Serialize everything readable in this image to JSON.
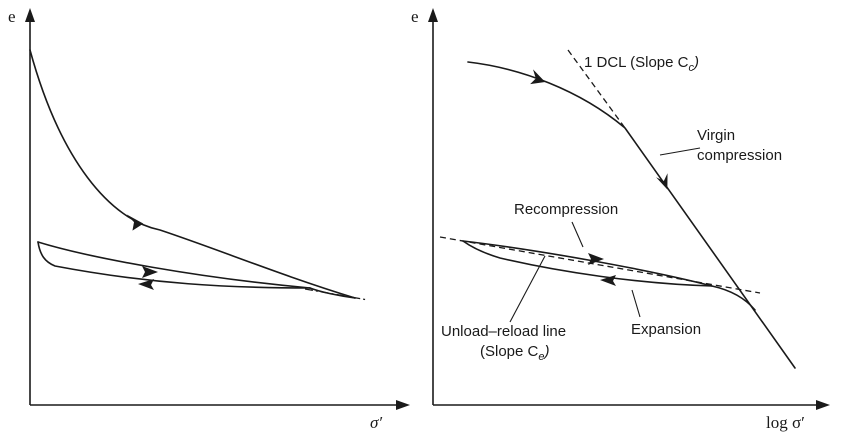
{
  "left_plot": {
    "y_axis_label": "e",
    "x_axis_label": "σ′"
  },
  "right_plot": {
    "y_axis_label": "e",
    "x_axis_label": "log σ′",
    "labels": {
      "dcl": "1 DCL (Slope C",
      "dcl_sub": "c",
      "dcl_close": ")",
      "virgin_line1": "Virgin",
      "virgin_line2": "compression",
      "recompression": "Recompression",
      "expansion": "Expansion",
      "url_line1": "Unload–reload line",
      "url_line2": "(Slope C",
      "url_sub": "e",
      "url_close": ")"
    }
  }
}
